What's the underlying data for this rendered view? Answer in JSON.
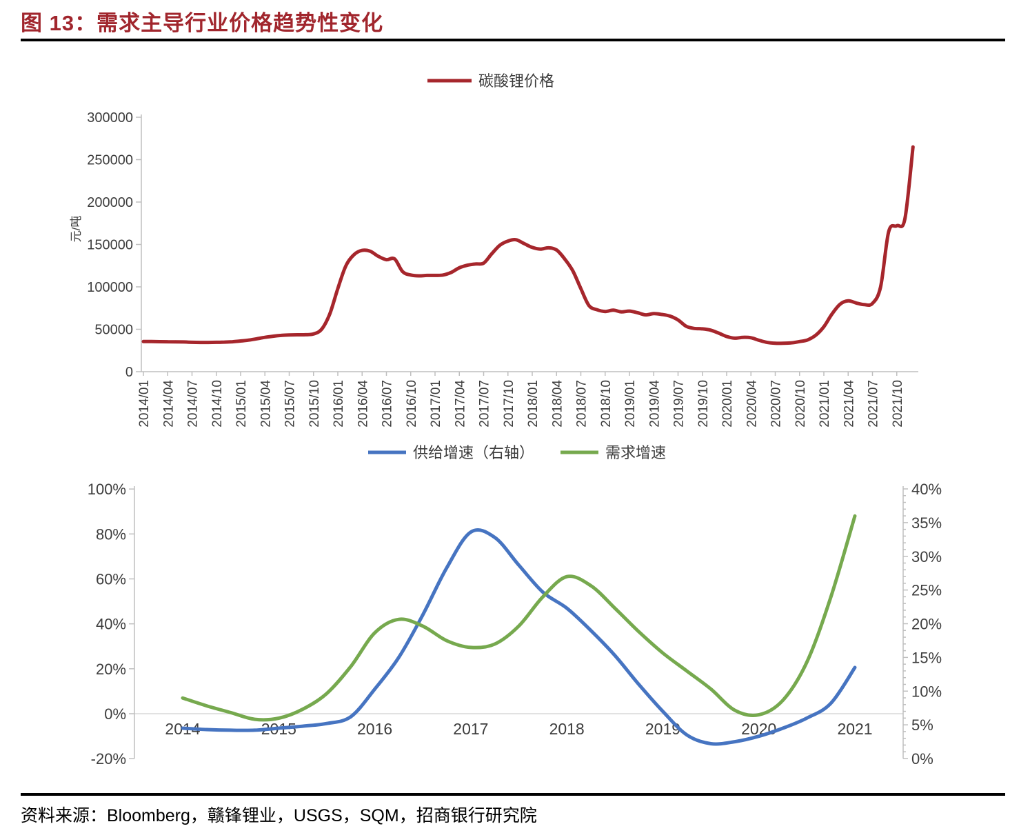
{
  "figure": {
    "title": "图 13：需求主导行业价格趋势性变化",
    "source": "资料来源：Bloomberg，赣锋锂业，USGS，SQM，招商银行研究院"
  },
  "colors": {
    "title": "#A1262D",
    "price_line": "#A6262C",
    "supply_line": "#4674C1",
    "demand_line": "#76A94E",
    "axis": "#BFBFBF",
    "gridline": "#D9D9D9",
    "tick_text": "#3d3d3d"
  },
  "chart_data": [
    {
      "type": "line",
      "name": "lithium-carbonate-price-chart",
      "legend": [
        {
          "label": "碳酸锂价格",
          "color_key": "price_line"
        }
      ],
      "legend_position": "top-center",
      "ylabel": "元/吨",
      "ylim": [
        0,
        300000
      ],
      "ytick_step": 50000,
      "ytick_labels": [
        "0",
        "50000",
        "100000",
        "150000",
        "200000",
        "250000",
        "300000"
      ],
      "x_start": "2014/01",
      "x_step_months": 1,
      "x_tick_labels": [
        "2014/01",
        "2014/04",
        "2014/07",
        "2014/10",
        "2015/01",
        "2015/04",
        "2015/07",
        "2015/10",
        "2016/01",
        "2016/04",
        "2016/07",
        "2016/10",
        "2017/01",
        "2017/04",
        "2017/07",
        "2017/10",
        "2018/01",
        "2018/04",
        "2018/07",
        "2018/10",
        "2019/01",
        "2019/04",
        "2019/07",
        "2019/10",
        "2020/01",
        "2020/04",
        "2020/07",
        "2020/10",
        "2021/01",
        "2021/04",
        "2021/07",
        "2021/10"
      ],
      "grid": false,
      "series": [
        {
          "name": "碳酸锂价格",
          "unit": "元/吨",
          "values": [
            35500,
            35500,
            35400,
            35300,
            35200,
            35000,
            34600,
            34500,
            34500,
            34600,
            34900,
            35300,
            36200,
            37200,
            38800,
            40500,
            41800,
            42800,
            43300,
            43500,
            43600,
            44500,
            50000,
            68000,
            98000,
            125000,
            138000,
            143000,
            142000,
            136000,
            132000,
            133000,
            118000,
            114000,
            113000,
            113500,
            113500,
            114000,
            117000,
            122500,
            125500,
            127000,
            128000,
            139000,
            149000,
            154000,
            155500,
            151000,
            146500,
            144500,
            146000,
            143500,
            133000,
            119000,
            98000,
            78000,
            73000,
            71000,
            72500,
            70500,
            71500,
            69500,
            67000,
            68500,
            67500,
            65500,
            61000,
            53500,
            51000,
            50500,
            49000,
            45500,
            41500,
            39500,
            40500,
            40000,
            37000,
            34500,
            33500,
            33500,
            34000,
            35500,
            37500,
            43000,
            53000,
            68000,
            79500,
            83500,
            81000,
            79000,
            80500,
            100000,
            165000,
            172000,
            180000,
            265000
          ]
        }
      ]
    },
    {
      "type": "line",
      "name": "supply-demand-growth-chart",
      "legend": [
        {
          "label": "供给增速（右轴）",
          "color_key": "supply_line"
        },
        {
          "label": "需求增速",
          "color_key": "demand_line"
        }
      ],
      "legend_position": "top-center",
      "left_axis": {
        "lim": [
          -20,
          100
        ],
        "tick_step": 20,
        "tick_labels": [
          "100%",
          "80%",
          "60%",
          "40%",
          "20%",
          "0%",
          "-20%"
        ]
      },
      "right_axis": {
        "lim": [
          0,
          40
        ],
        "tick_step": 5,
        "minor_tick_step": 1,
        "tick_labels": [
          "40%",
          "35%",
          "30%",
          "25%",
          "20%",
          "15%",
          "10%",
          "5%",
          "0%"
        ]
      },
      "x_ticks": [
        2014,
        2015,
        2016,
        2017,
        2018,
        2019,
        2020,
        2021
      ],
      "x_start": 2014,
      "x_step_years": 0.25,
      "grid": "zero-line-only",
      "series": [
        {
          "name": "供给增速（右轴）",
          "axis": "right",
          "unit": "%",
          "values": [
            4.5,
            4.3,
            4.2,
            4.2,
            4.5,
            4.8,
            5.2,
            6.2,
            10.3,
            15.0,
            21.3,
            28.3,
            33.6,
            32.8,
            28.7,
            24.7,
            22.3,
            19.0,
            15.3,
            11.0,
            7.0,
            3.5,
            2.2,
            2.5,
            3.3,
            4.5,
            6.0,
            8.2,
            13.5
          ]
        },
        {
          "name": "需求增速",
          "axis": "left",
          "unit": "%",
          "values": [
            7,
            3.5,
            0.5,
            -2.5,
            -2,
            2,
            9,
            21,
            36,
            42,
            39,
            32.5,
            29.5,
            31,
            39,
            52,
            61,
            57,
            47,
            36.5,
            27,
            19,
            11,
            1.5,
            -0.5,
            6,
            23,
            52,
            88
          ]
        }
      ]
    }
  ]
}
